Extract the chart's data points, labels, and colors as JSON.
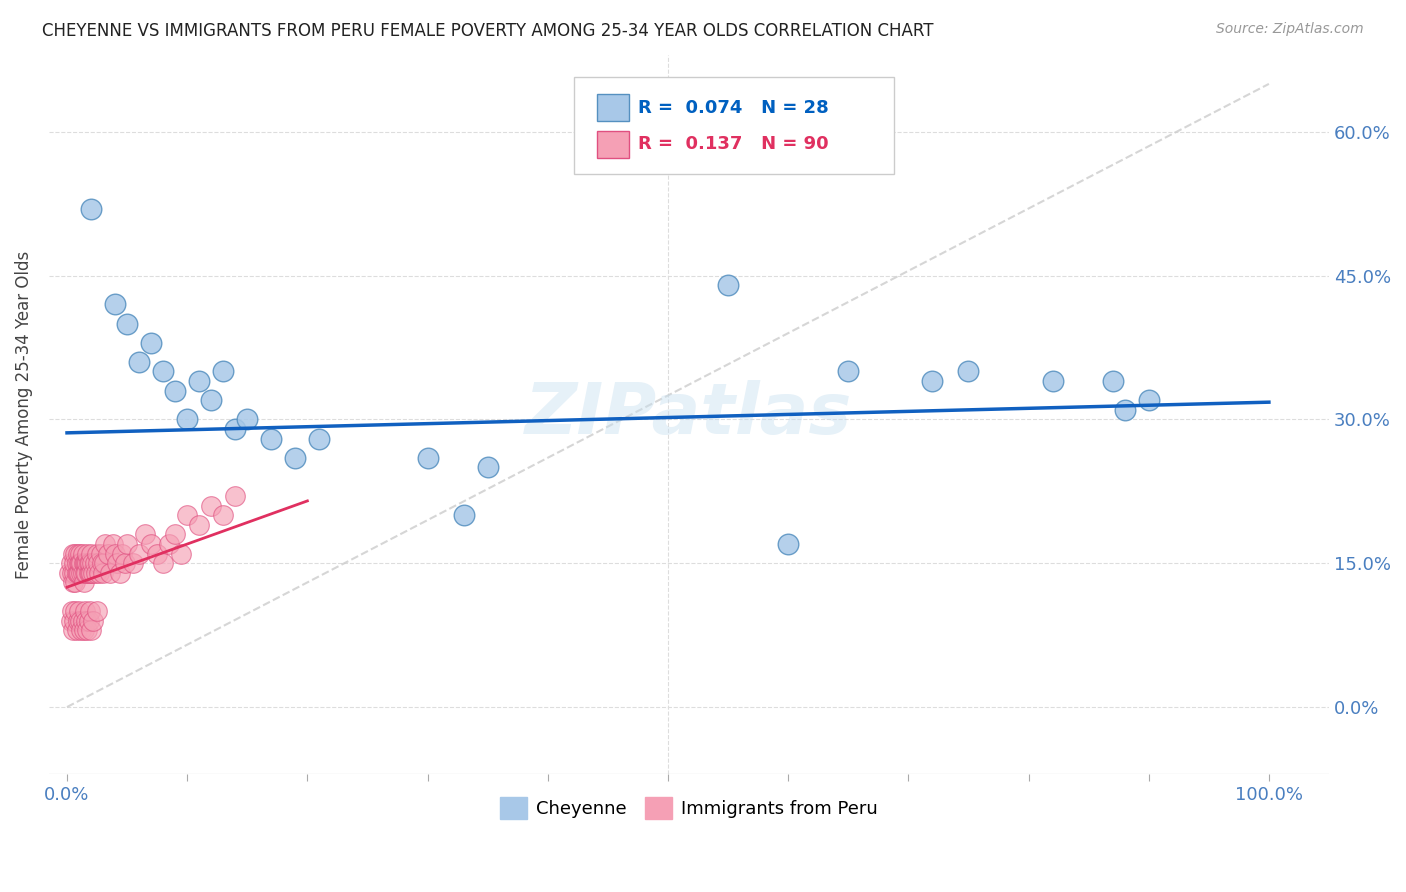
{
  "title": "CHEYENNE VS IMMIGRANTS FROM PERU FEMALE POVERTY AMONG 25-34 YEAR OLDS CORRELATION CHART",
  "source": "Source: ZipAtlas.com",
  "ylabel": "Female Poverty Among 25-34 Year Olds",
  "yticks": [
    0.0,
    0.15,
    0.3,
    0.45,
    0.6
  ],
  "ytick_labels_right": [
    "0.0%",
    "15.0%",
    "30.0%",
    "45.0%",
    "60.0%"
  ],
  "xticks": [
    0.0,
    0.1,
    0.2,
    0.3,
    0.4,
    0.5,
    0.6,
    0.7,
    0.8,
    0.9,
    1.0
  ],
  "xlim": [
    -0.015,
    1.05
  ],
  "ylim": [
    -0.07,
    0.68
  ],
  "cheyenne_color": "#a8c8e8",
  "peru_color": "#f5a0b5",
  "cheyenne_edge": "#5590c0",
  "peru_edge": "#e05080",
  "trend_blue": "#1060c0",
  "trend_pink": "#e03060",
  "trend_gray": "#cccccc",
  "watermark": "ZIPatlas",
  "cheyenne_x": [
    0.02,
    0.04,
    0.05,
    0.06,
    0.07,
    0.08,
    0.09,
    0.1,
    0.11,
    0.12,
    0.13,
    0.14,
    0.15,
    0.17,
    0.19,
    0.21,
    0.3,
    0.35,
    0.55,
    0.65,
    0.72,
    0.82,
    0.87,
    0.9,
    0.33,
    0.6,
    0.75,
    0.88
  ],
  "cheyenne_y": [
    0.52,
    0.42,
    0.4,
    0.36,
    0.38,
    0.35,
    0.33,
    0.3,
    0.34,
    0.32,
    0.35,
    0.29,
    0.3,
    0.28,
    0.26,
    0.28,
    0.26,
    0.25,
    0.44,
    0.35,
    0.34,
    0.34,
    0.34,
    0.32,
    0.2,
    0.17,
    0.35,
    0.31
  ],
  "peru_x": [
    0.002,
    0.003,
    0.004,
    0.005,
    0.005,
    0.006,
    0.006,
    0.007,
    0.007,
    0.008,
    0.008,
    0.009,
    0.009,
    0.01,
    0.01,
    0.011,
    0.011,
    0.012,
    0.012,
    0.013,
    0.013,
    0.014,
    0.014,
    0.015,
    0.015,
    0.016,
    0.016,
    0.017,
    0.017,
    0.018,
    0.018,
    0.019,
    0.019,
    0.02,
    0.02,
    0.021,
    0.022,
    0.023,
    0.024,
    0.025,
    0.026,
    0.027,
    0.028,
    0.029,
    0.03,
    0.031,
    0.032,
    0.034,
    0.036,
    0.038,
    0.04,
    0.042,
    0.044,
    0.046,
    0.048,
    0.05,
    0.055,
    0.06,
    0.065,
    0.07,
    0.075,
    0.08,
    0.085,
    0.09,
    0.095,
    0.1,
    0.11,
    0.12,
    0.13,
    0.14,
    0.003,
    0.004,
    0.005,
    0.006,
    0.007,
    0.008,
    0.009,
    0.01,
    0.011,
    0.012,
    0.013,
    0.014,
    0.015,
    0.016,
    0.017,
    0.018,
    0.019,
    0.02,
    0.022,
    0.025
  ],
  "peru_y": [
    0.14,
    0.15,
    0.14,
    0.13,
    0.16,
    0.14,
    0.15,
    0.13,
    0.16,
    0.14,
    0.15,
    0.14,
    0.16,
    0.15,
    0.14,
    0.16,
    0.15,
    0.14,
    0.15,
    0.16,
    0.14,
    0.15,
    0.13,
    0.15,
    0.14,
    0.15,
    0.14,
    0.15,
    0.16,
    0.14,
    0.15,
    0.14,
    0.15,
    0.14,
    0.16,
    0.15,
    0.14,
    0.15,
    0.14,
    0.16,
    0.15,
    0.14,
    0.16,
    0.15,
    0.14,
    0.15,
    0.17,
    0.16,
    0.14,
    0.17,
    0.16,
    0.15,
    0.14,
    0.16,
    0.15,
    0.17,
    0.15,
    0.16,
    0.18,
    0.17,
    0.16,
    0.15,
    0.17,
    0.18,
    0.16,
    0.2,
    0.19,
    0.21,
    0.2,
    0.22,
    0.09,
    0.1,
    0.08,
    0.09,
    0.1,
    0.08,
    0.09,
    0.1,
    0.09,
    0.08,
    0.09,
    0.08,
    0.1,
    0.09,
    0.08,
    0.09,
    0.1,
    0.08,
    0.09,
    0.1
  ],
  "blue_trend_x": [
    0.0,
    1.0
  ],
  "blue_trend_y": [
    0.286,
    0.318
  ],
  "pink_trend_x": [
    0.0,
    0.2
  ],
  "pink_trend_y": [
    0.125,
    0.215
  ]
}
